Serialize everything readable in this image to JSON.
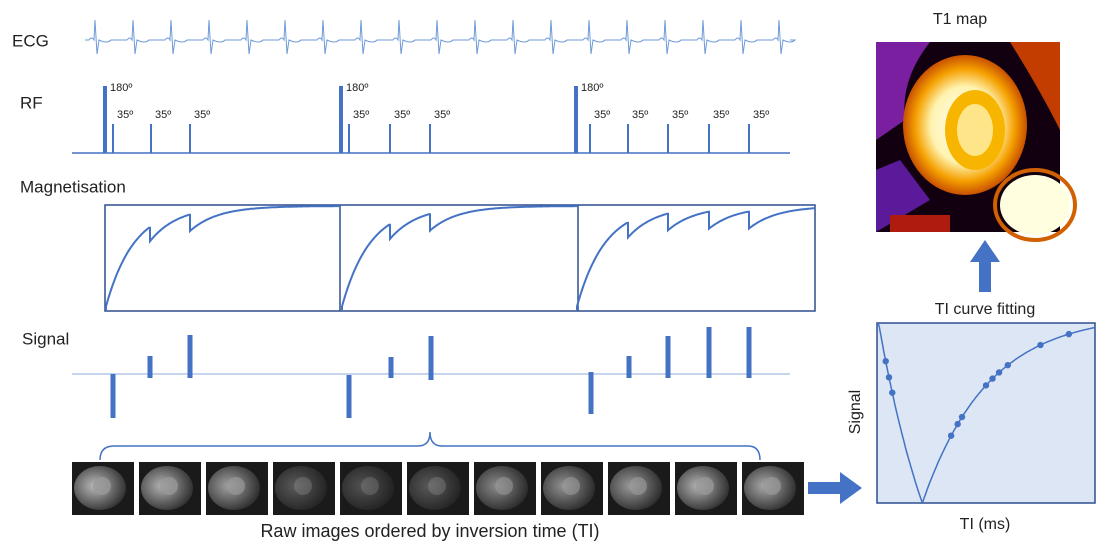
{
  "labels": {
    "ecg": "ECG",
    "rf": "RF",
    "magnetisation": "Magnetisation",
    "signal": "Signal"
  },
  "rf_pulses": [
    {
      "inversion": "180º",
      "excitations": [
        "35º",
        "35º",
        "35º"
      ]
    },
    {
      "inversion": "180º",
      "excitations": [
        "35º",
        "35º",
        "35º"
      ]
    },
    {
      "inversion": "180º",
      "excitations": [
        "35º",
        "35º",
        "35º",
        "35º",
        "35º"
      ]
    }
  ],
  "raw_images_caption": "Raw images ordered by inversion time (TI)",
  "t1_map": {
    "title": "T1 map"
  },
  "curve_fitting": {
    "title": "TI curve fitting",
    "y_axis_label": "Signal",
    "x_axis_label": "TI (ms)"
  }
}
